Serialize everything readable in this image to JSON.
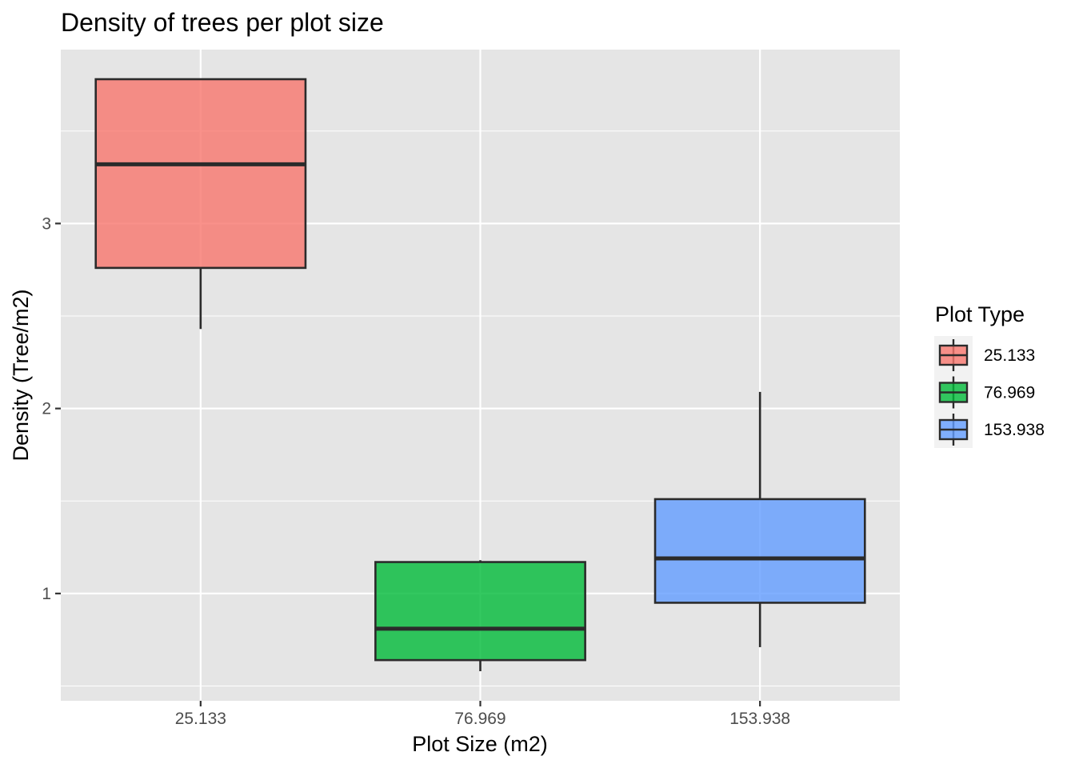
{
  "chart_data": {
    "type": "boxplot",
    "title": "Density of trees per plot size",
    "xlabel": "Plot Size (m2)",
    "ylabel": "Density (Tree/m2)",
    "categories": [
      "25.133",
      "76.969",
      "153.938"
    ],
    "ylim": [
      0.42,
      3.94
    ],
    "yticks": [
      1,
      2,
      3
    ],
    "ytick_labels": [
      "1",
      "2",
      "3"
    ],
    "grid": true,
    "series": [
      {
        "category": "25.133",
        "min": 2.43,
        "q1": 2.76,
        "median": 3.32,
        "q3": 3.78,
        "max": 3.78,
        "color": "#F8766D"
      },
      {
        "category": "76.969",
        "min": 0.58,
        "q1": 0.64,
        "median": 0.81,
        "q3": 1.17,
        "max": 1.18,
        "color": "#00BA38"
      },
      {
        "category": "153.938",
        "min": 0.71,
        "q1": 0.95,
        "median": 1.19,
        "q3": 1.51,
        "max": 2.09,
        "color": "#619CFF"
      }
    ],
    "legend": {
      "title": "Plot Type",
      "placement": "right",
      "entries": [
        {
          "label": "25.133",
          "color": "#F8766D"
        },
        {
          "label": "76.969",
          "color": "#00BA38"
        },
        {
          "label": "153.938",
          "color": "#619CFF"
        }
      ]
    },
    "colors": {
      "panel": "#E5E5E5",
      "gridline": "#FFFFFF",
      "outline": "#2B2B2B"
    }
  }
}
